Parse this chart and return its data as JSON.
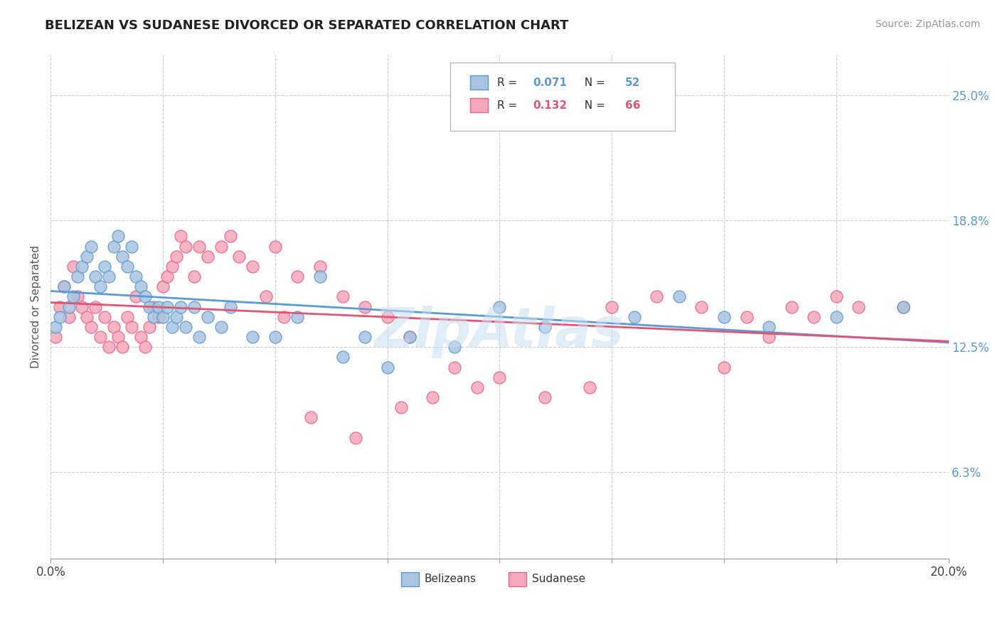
{
  "title": "BELIZEAN VS SUDANESE DIVORCED OR SEPARATED CORRELATION CHART",
  "source": "Source: ZipAtlas.com",
  "ylabel": "Divorced or Separated",
  "xlim": [
    0.0,
    0.2
  ],
  "ylim": [
    0.02,
    0.27
  ],
  "yticks": [
    0.063,
    0.125,
    0.188,
    0.25
  ],
  "ytick_labels": [
    "6.3%",
    "12.5%",
    "18.8%",
    "25.0%"
  ],
  "xticks": [
    0.0,
    0.025,
    0.05,
    0.075,
    0.1,
    0.125,
    0.15,
    0.175,
    0.2
  ],
  "xtick_labels": [
    "0.0%",
    "",
    "",
    "",
    "",
    "",
    "",
    "",
    "20.0%"
  ],
  "belizean_color": "#a8c4e0",
  "sudanese_color": "#f4a8b8",
  "belizean_edge": "#5b9bd5",
  "sudanese_edge": "#f06090",
  "trendline_belizean": "#5b9bd5",
  "trendline_sudanese": "#e05575",
  "watermark": "ZipAtlas",
  "belizean_x": [
    0.001,
    0.002,
    0.003,
    0.004,
    0.005,
    0.006,
    0.007,
    0.008,
    0.009,
    0.01,
    0.011,
    0.012,
    0.013,
    0.014,
    0.015,
    0.016,
    0.017,
    0.018,
    0.019,
    0.02,
    0.021,
    0.022,
    0.023,
    0.024,
    0.025,
    0.026,
    0.027,
    0.028,
    0.029,
    0.03,
    0.032,
    0.035,
    0.038,
    0.04,
    0.045,
    0.05,
    0.055,
    0.065,
    0.07,
    0.075,
    0.08,
    0.09,
    0.1,
    0.11,
    0.13,
    0.14,
    0.15,
    0.16,
    0.175,
    0.19,
    0.06,
    0.033
  ],
  "belizean_y": [
    0.135,
    0.14,
    0.155,
    0.145,
    0.15,
    0.16,
    0.165,
    0.17,
    0.175,
    0.16,
    0.155,
    0.165,
    0.16,
    0.175,
    0.18,
    0.17,
    0.165,
    0.175,
    0.16,
    0.155,
    0.15,
    0.145,
    0.14,
    0.145,
    0.14,
    0.145,
    0.135,
    0.14,
    0.145,
    0.135,
    0.145,
    0.14,
    0.135,
    0.145,
    0.13,
    0.13,
    0.14,
    0.12,
    0.13,
    0.115,
    0.13,
    0.125,
    0.145,
    0.135,
    0.14,
    0.15,
    0.14,
    0.135,
    0.14,
    0.145,
    0.16,
    0.13
  ],
  "sudanese_x": [
    0.001,
    0.002,
    0.003,
    0.004,
    0.005,
    0.006,
    0.007,
    0.008,
    0.009,
    0.01,
    0.011,
    0.012,
    0.013,
    0.014,
    0.015,
    0.016,
    0.017,
    0.018,
    0.019,
    0.02,
    0.021,
    0.022,
    0.023,
    0.024,
    0.025,
    0.026,
    0.027,
    0.028,
    0.029,
    0.03,
    0.032,
    0.035,
    0.038,
    0.04,
    0.045,
    0.05,
    0.055,
    0.06,
    0.065,
    0.07,
    0.075,
    0.08,
    0.09,
    0.1,
    0.12,
    0.15,
    0.16,
    0.17,
    0.18,
    0.19,
    0.033,
    0.042,
    0.048,
    0.052,
    0.058,
    0.068,
    0.078,
    0.085,
    0.095,
    0.11,
    0.125,
    0.135,
    0.145,
    0.155,
    0.165,
    0.175
  ],
  "sudanese_y": [
    0.13,
    0.145,
    0.155,
    0.14,
    0.165,
    0.15,
    0.145,
    0.14,
    0.135,
    0.145,
    0.13,
    0.14,
    0.125,
    0.135,
    0.13,
    0.125,
    0.14,
    0.135,
    0.15,
    0.13,
    0.125,
    0.135,
    0.145,
    0.14,
    0.155,
    0.16,
    0.165,
    0.17,
    0.18,
    0.175,
    0.16,
    0.17,
    0.175,
    0.18,
    0.165,
    0.175,
    0.16,
    0.165,
    0.15,
    0.145,
    0.14,
    0.13,
    0.115,
    0.11,
    0.105,
    0.115,
    0.13,
    0.14,
    0.145,
    0.145,
    0.175,
    0.17,
    0.15,
    0.14,
    0.09,
    0.08,
    0.095,
    0.1,
    0.105,
    0.1,
    0.145,
    0.15,
    0.145,
    0.14,
    0.145,
    0.15
  ]
}
